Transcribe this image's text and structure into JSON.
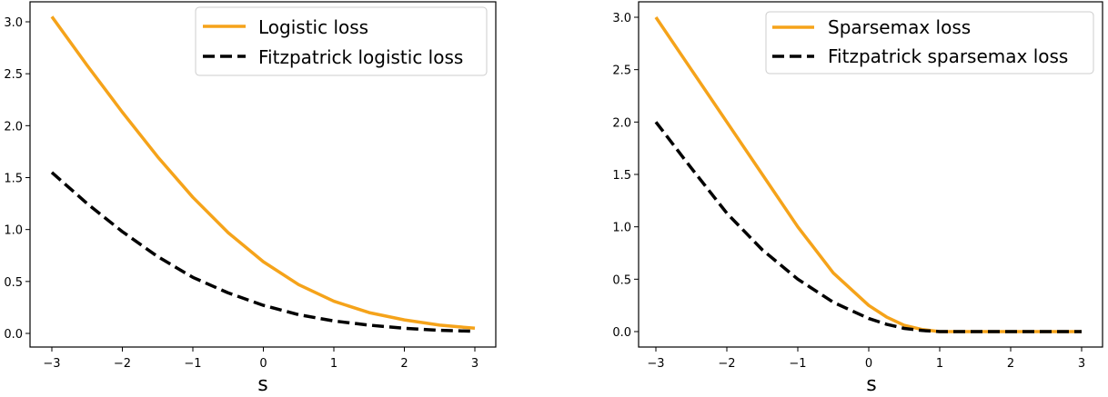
{
  "chart_data": [
    {
      "type": "line",
      "title": "",
      "xlabel": "s",
      "ylabel": "",
      "xlim": [
        -3.3,
        3.3
      ],
      "ylim": [
        -0.12,
        3.2
      ],
      "xticks": [
        -3,
        -2,
        -1,
        0,
        1,
        2,
        3
      ],
      "xtick_labels": [
        "−3",
        "−2",
        "−1",
        "0",
        "1",
        "2",
        "3"
      ],
      "yticks": [
        0.0,
        0.5,
        1.0,
        1.5,
        2.0,
        2.5,
        3.0
      ],
      "ytick_labels": [
        "0.0",
        "0.5",
        "1.0",
        "1.5",
        "2.0",
        "2.5",
        "3.0"
      ],
      "grid": false,
      "legend_position": "upper right",
      "x": [
        -3,
        -2.5,
        -2,
        -1.5,
        -1,
        -0.5,
        0,
        0.5,
        1,
        1.5,
        2,
        2.5,
        3
      ],
      "series": [
        {
          "name": "Logistic loss",
          "color": "#f5a31a",
          "style": "solid",
          "values": [
            3.05,
            2.58,
            2.13,
            1.7,
            1.31,
            0.97,
            0.69,
            0.47,
            0.31,
            0.2,
            0.13,
            0.08,
            0.05
          ]
        },
        {
          "name": "Fitzpatrick logistic loss",
          "color": "#000000",
          "style": "dashed",
          "values": [
            1.55,
            1.25,
            0.98,
            0.74,
            0.54,
            0.39,
            0.27,
            0.18,
            0.12,
            0.08,
            0.05,
            0.03,
            0.02
          ]
        }
      ]
    },
    {
      "type": "line",
      "title": "",
      "xlabel": "s",
      "ylabel": "",
      "xlim": [
        -3.3,
        3.3
      ],
      "ylim": [
        -0.12,
        3.15
      ],
      "xticks": [
        -3,
        -2,
        -1,
        0,
        1,
        2,
        3
      ],
      "xtick_labels": [
        "−3",
        "−2",
        "−1",
        "0",
        "1",
        "2",
        "3"
      ],
      "yticks": [
        0.0,
        0.5,
        1.0,
        1.5,
        2.0,
        2.5,
        3.0
      ],
      "ytick_labels": [
        "0.0",
        "0.5",
        "1.0",
        "1.5",
        "2.0",
        "2.5",
        "3.0"
      ],
      "grid": false,
      "legend_position": "upper right",
      "x": [
        -3,
        -2.5,
        -2,
        -1.5,
        -1,
        -0.5,
        0,
        0.25,
        0.5,
        0.75,
        1,
        1.5,
        2,
        2.5,
        3
      ],
      "series": [
        {
          "name": "Sparsemax loss",
          "color": "#f5a31a",
          "style": "solid",
          "values": [
            3.0,
            2.5,
            2.0,
            1.5,
            1.0,
            0.56,
            0.25,
            0.14,
            0.06,
            0.02,
            0.0,
            0.0,
            0.0,
            0.0,
            0.0
          ]
        },
        {
          "name": "Fitzpatrick sparsemax loss",
          "color": "#000000",
          "style": "dashed",
          "values": [
            2.0,
            1.56,
            1.13,
            0.78,
            0.5,
            0.28,
            0.125,
            0.07,
            0.03,
            0.01,
            0.0,
            0.0,
            0.0,
            0.0,
            0.0
          ]
        }
      ]
    }
  ],
  "panels": [
    {
      "legend": [
        "Logistic loss",
        "Fitzpatrick logistic loss"
      ],
      "xlabel": "s"
    },
    {
      "legend": [
        "Sparsemax loss",
        "Fitzpatrick sparsemax loss"
      ],
      "xlabel": "s"
    }
  ]
}
